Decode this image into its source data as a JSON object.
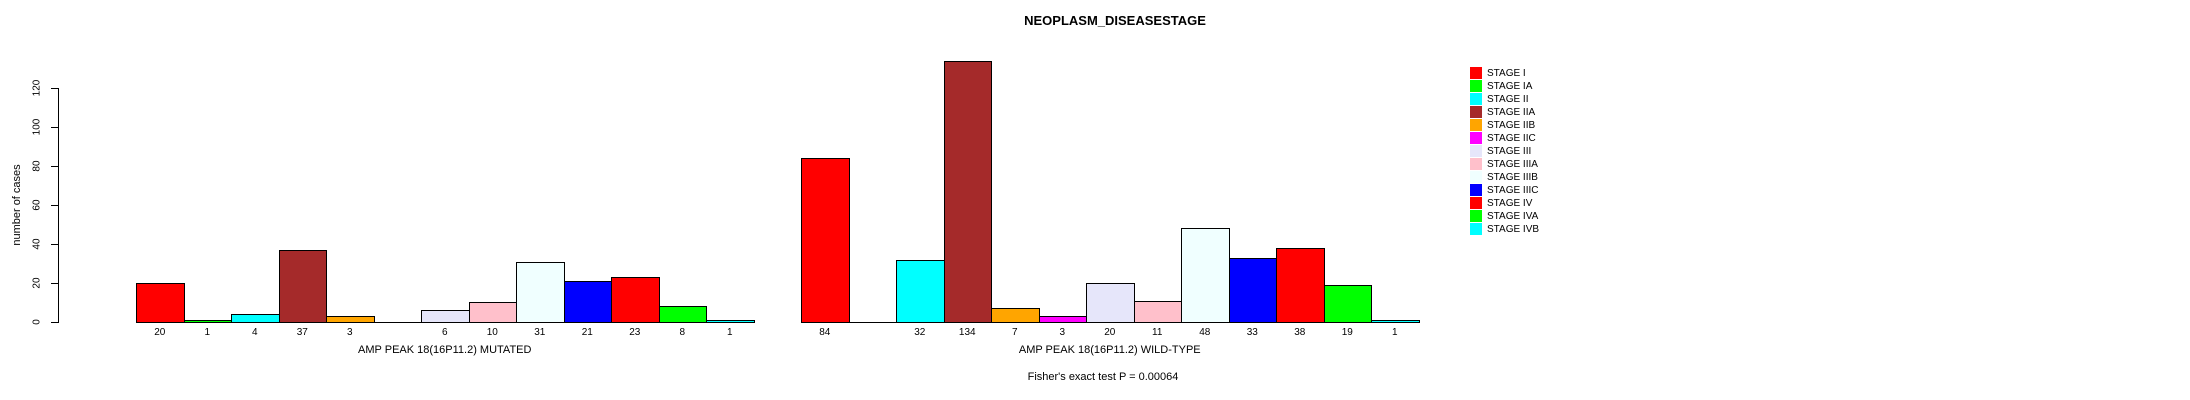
{
  "chart_data": {
    "type": "bar",
    "title": "NEOPLASM_DISEASESTAGE",
    "ylabel": "number of cases",
    "yticks": [
      0,
      20,
      40,
      60,
      80,
      100,
      120
    ],
    "ylim": [
      0,
      140
    ],
    "grid": false,
    "legend_position": "right",
    "categories": [
      "STAGE I",
      "STAGE IA",
      "STAGE II",
      "STAGE IIA",
      "STAGE IIB",
      "STAGE IIC",
      "STAGE III",
      "STAGE IIIA",
      "STAGE IIIB",
      "STAGE IIIC",
      "STAGE IV",
      "STAGE IVA",
      "STAGE IVB"
    ],
    "colors": [
      "#FF0000",
      "#00FF00",
      "#00FFFF",
      "#A52A2A",
      "#FFA500",
      "#FF00FF",
      "#E6E6FA",
      "#FFC0CB",
      "#F0FFFF",
      "#0000FF",
      "#FF0000",
      "#00FF00",
      "#00FFFF"
    ],
    "series": [
      {
        "name": "AMP PEAK 18(16P11.2) MUTATED",
        "values": [
          20,
          1,
          4,
          37,
          3,
          0,
          6,
          10,
          31,
          21,
          23,
          8,
          1
        ]
      },
      {
        "name": "AMP PEAK 18(16P11.2) WILD-TYPE",
        "values": [
          84,
          0,
          32,
          134,
          7,
          3,
          20,
          11,
          48,
          33,
          38,
          19,
          1
        ]
      }
    ],
    "annotation": "Fisher's exact test P = 0.00064"
  }
}
